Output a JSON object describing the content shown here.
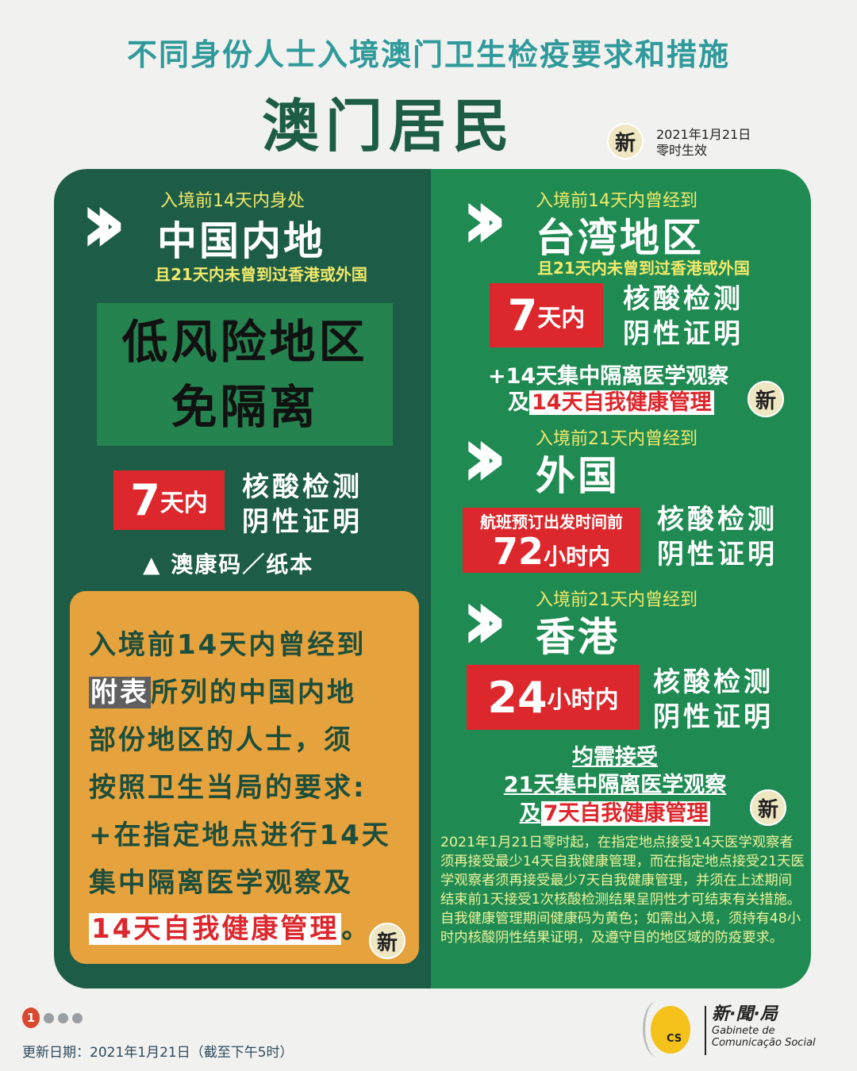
{
  "header": {
    "title": "不同身份人士入境澳门卫生检疫要求和措施",
    "subtitle": "澳门居民",
    "new_badge": "新",
    "effective_date": "2021年1月21日",
    "effective_note": "零时生效"
  },
  "left": {
    "pre": "入境前14天内身处",
    "region": "中国内地",
    "cond": "且21天内未曾到过香港或外国",
    "low_risk_line1": "低风险地区",
    "low_risk_line2": "免隔离",
    "days_num": "7",
    "days_unit": "天内",
    "test1": "核酸检测",
    "test2": "阴性证明",
    "code": "▲ 澳康码／纸本",
    "orange": {
      "l1": "入境前14天内曾经到",
      "l2_hl": "附表",
      "l2": "所列的中国内地",
      "l3": "部份地区的人士，须",
      "l4": "按照卫生当局的要求:",
      "l5": "+在指定地点进行14天",
      "l6": "集中隔离医学观察及",
      "l7_hl": "14天自我健康管理",
      "l7": "。",
      "badge": "新"
    }
  },
  "right": {
    "taiwan": {
      "pre": "入境前14天内曾经到",
      "region": "台湾地区",
      "cond": "且21天内未曾到过香港或外国",
      "days_num": "7",
      "days_unit": "天内",
      "test1": "核酸检测",
      "test2": "阴性证明",
      "extra1": "+14天集中隔离医学观察",
      "extra2_pre": "及",
      "extra2_hl": "14天自我健康管理",
      "badge": "新"
    },
    "foreign": {
      "pre": "入境前21天内曾经到",
      "region": "外国",
      "note": "航班预订出发时间前",
      "hours_num": "72",
      "hours_unit": "小时内",
      "test1": "核酸检测",
      "test2": "阴性证明"
    },
    "hongkong": {
      "pre": "入境前21天内曾经到",
      "region": "香港",
      "hours_num": "24",
      "hours_unit": "小时内",
      "test1": "核酸检测",
      "test2": "阴性证明"
    },
    "common": {
      "l1": "均需接受",
      "l2": "21天集中隔离医学观察",
      "l3_pre": "及",
      "l3_hl": "7天自我健康管理",
      "badge": "新"
    },
    "paragraph": "2021年1月21日零时起，在指定地点接受14天医学观察者须再接受最少14天自我健康管理，而在指定地点接受21天医学观察者须再接受最少7天自我健康管理，并须在上述期间结束前1天接受1次核酸检测结果呈阴性才可结束有关措施。自我健康管理期间健康码为黄色；如需出入境，须持有48小时内核酸阴性结果证明，及遵守目的地区域的防疫要求。"
  },
  "footer": {
    "page_current": "1",
    "pages_total": 4,
    "update": "更新日期：2021年1月21日（截至下午5时）",
    "logo_cn": "新·聞·局",
    "logo_pt1": "Gabinete de",
    "logo_pt2": "Comunicação Social",
    "logo_mark": "GCS"
  },
  "colors": {
    "title": "#2f9a9b",
    "dark_green": "#1d5c46",
    "green": "#1f8b53",
    "red": "#dc282d",
    "orange": "#e6a23c",
    "yellow": "#f2e96a"
  }
}
